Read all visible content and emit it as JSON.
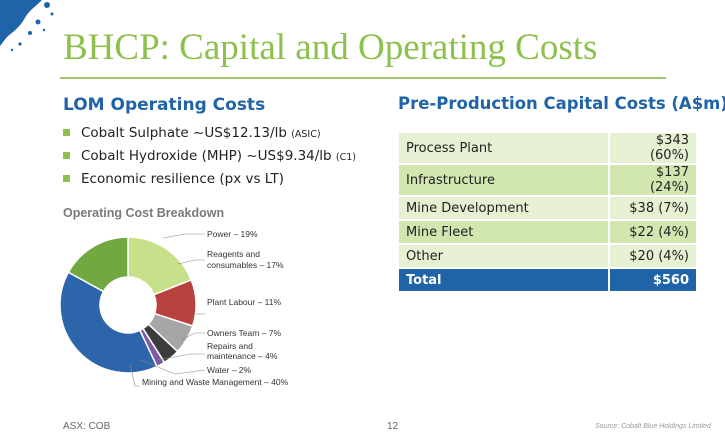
{
  "title": "BHCP: Capital and Operating Costs",
  "lom": {
    "heading": "LOM Operating Costs",
    "bullets": [
      {
        "text": "Cobalt Sulphate ~US$12.13/lb ",
        "note": "(ASIC)"
      },
      {
        "text": "Cobalt Hydroxide (MHP) ~US$9.34/lb ",
        "note": "(C1)"
      },
      {
        "text": "Economic resilience (px vs LT)",
        "note": ""
      }
    ]
  },
  "chart_data": {
    "type": "pie",
    "title": "Operating Cost Breakdown",
    "slices": [
      {
        "label": "Power – 19%",
        "value": 19,
        "color": "#c9e08a"
      },
      {
        "label": "Plant Labour – 11%",
        "value": 11,
        "color": "#b7413e"
      },
      {
        "label": "Owners Team – 7%",
        "value": 7,
        "color": "#a6a6a6"
      },
      {
        "label": "Repairs and maintenance – 4%",
        "value": 4,
        "color": "#3c3c3c"
      },
      {
        "label": "Water – 2%",
        "value": 2,
        "color": "#7e5aa4"
      },
      {
        "label": "Mining and Waste Management – 40%",
        "value": 40,
        "color": "#2d65aa"
      },
      {
        "label": "Reagents and consumables – 17%",
        "value": 17,
        "color": "#71a83f"
      }
    ],
    "label_lines": {
      "power": [
        "Power – 19%"
      ],
      "reagents": [
        "Reagents and",
        "consumables – 17%"
      ],
      "labour": [
        "Plant Labour – 11%"
      ],
      "owners": [
        "Owners Team – 7%"
      ],
      "repairs": [
        "Repairs and",
        "maintenance – 4%"
      ],
      "water": [
        "Water – 2%"
      ],
      "mining": [
        "Mining and Waste Management – 40%"
      ]
    }
  },
  "capex": {
    "heading": "Pre-Production Capital Costs (A$m)",
    "rows": [
      {
        "item": "Process Plant",
        "value": "$343 (60%)"
      },
      {
        "item": "Infrastructure",
        "value": "$137 (24%)"
      },
      {
        "item": "Mine Development",
        "value": "$38 (7%)"
      },
      {
        "item": "Mine Fleet",
        "value": "$22 (4%)"
      },
      {
        "item": "Other",
        "value": "$20 (4%)"
      }
    ],
    "total": {
      "item": "Total",
      "value": "$560"
    }
  },
  "footer": {
    "ticker": "ASX: COB",
    "page": "12",
    "source": "Source: Cobalt Blue Holdings Limited"
  },
  "colors": {
    "title": "#8dc04d",
    "heading": "#1f64a8",
    "total_row": "#1f64a8",
    "bullet": "#8dc04d"
  }
}
